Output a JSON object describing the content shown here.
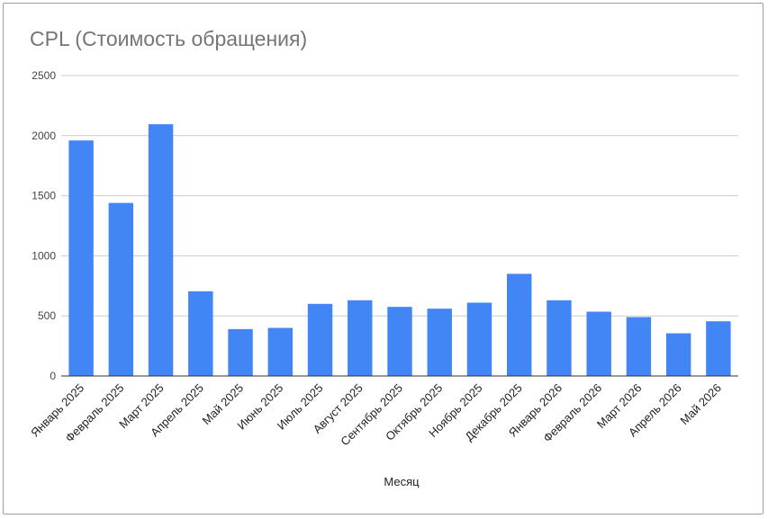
{
  "chart_data": {
    "type": "bar",
    "title": "CPL (Стоимость обращения)",
    "xlabel": "Месяц",
    "ylabel": "",
    "ylim": [
      0,
      2500
    ],
    "y_ticks": [
      "0",
      "500",
      "1000",
      "1500",
      "2000",
      "2500"
    ],
    "categories": [
      "Январь 2025",
      "Февраль 2025",
      "Март 2025",
      "Апрель 2025",
      "Май 2025",
      "Июнь 2025",
      "Июль 2025",
      "Август 2025",
      "Сентябрь 2025",
      "Октябрь 2025",
      "Ноябрь 2025",
      "Декабрь 2025",
      "Январь 2026",
      "Февраль 2026",
      "Март 2026",
      "Апрель 2026",
      "Май 2026"
    ],
    "values": [
      1960,
      1440,
      2095,
      705,
      390,
      400,
      600,
      630,
      575,
      560,
      610,
      850,
      630,
      535,
      490,
      355,
      455
    ],
    "bar_color": "#4285f4",
    "grid": true,
    "legend": "none"
  }
}
